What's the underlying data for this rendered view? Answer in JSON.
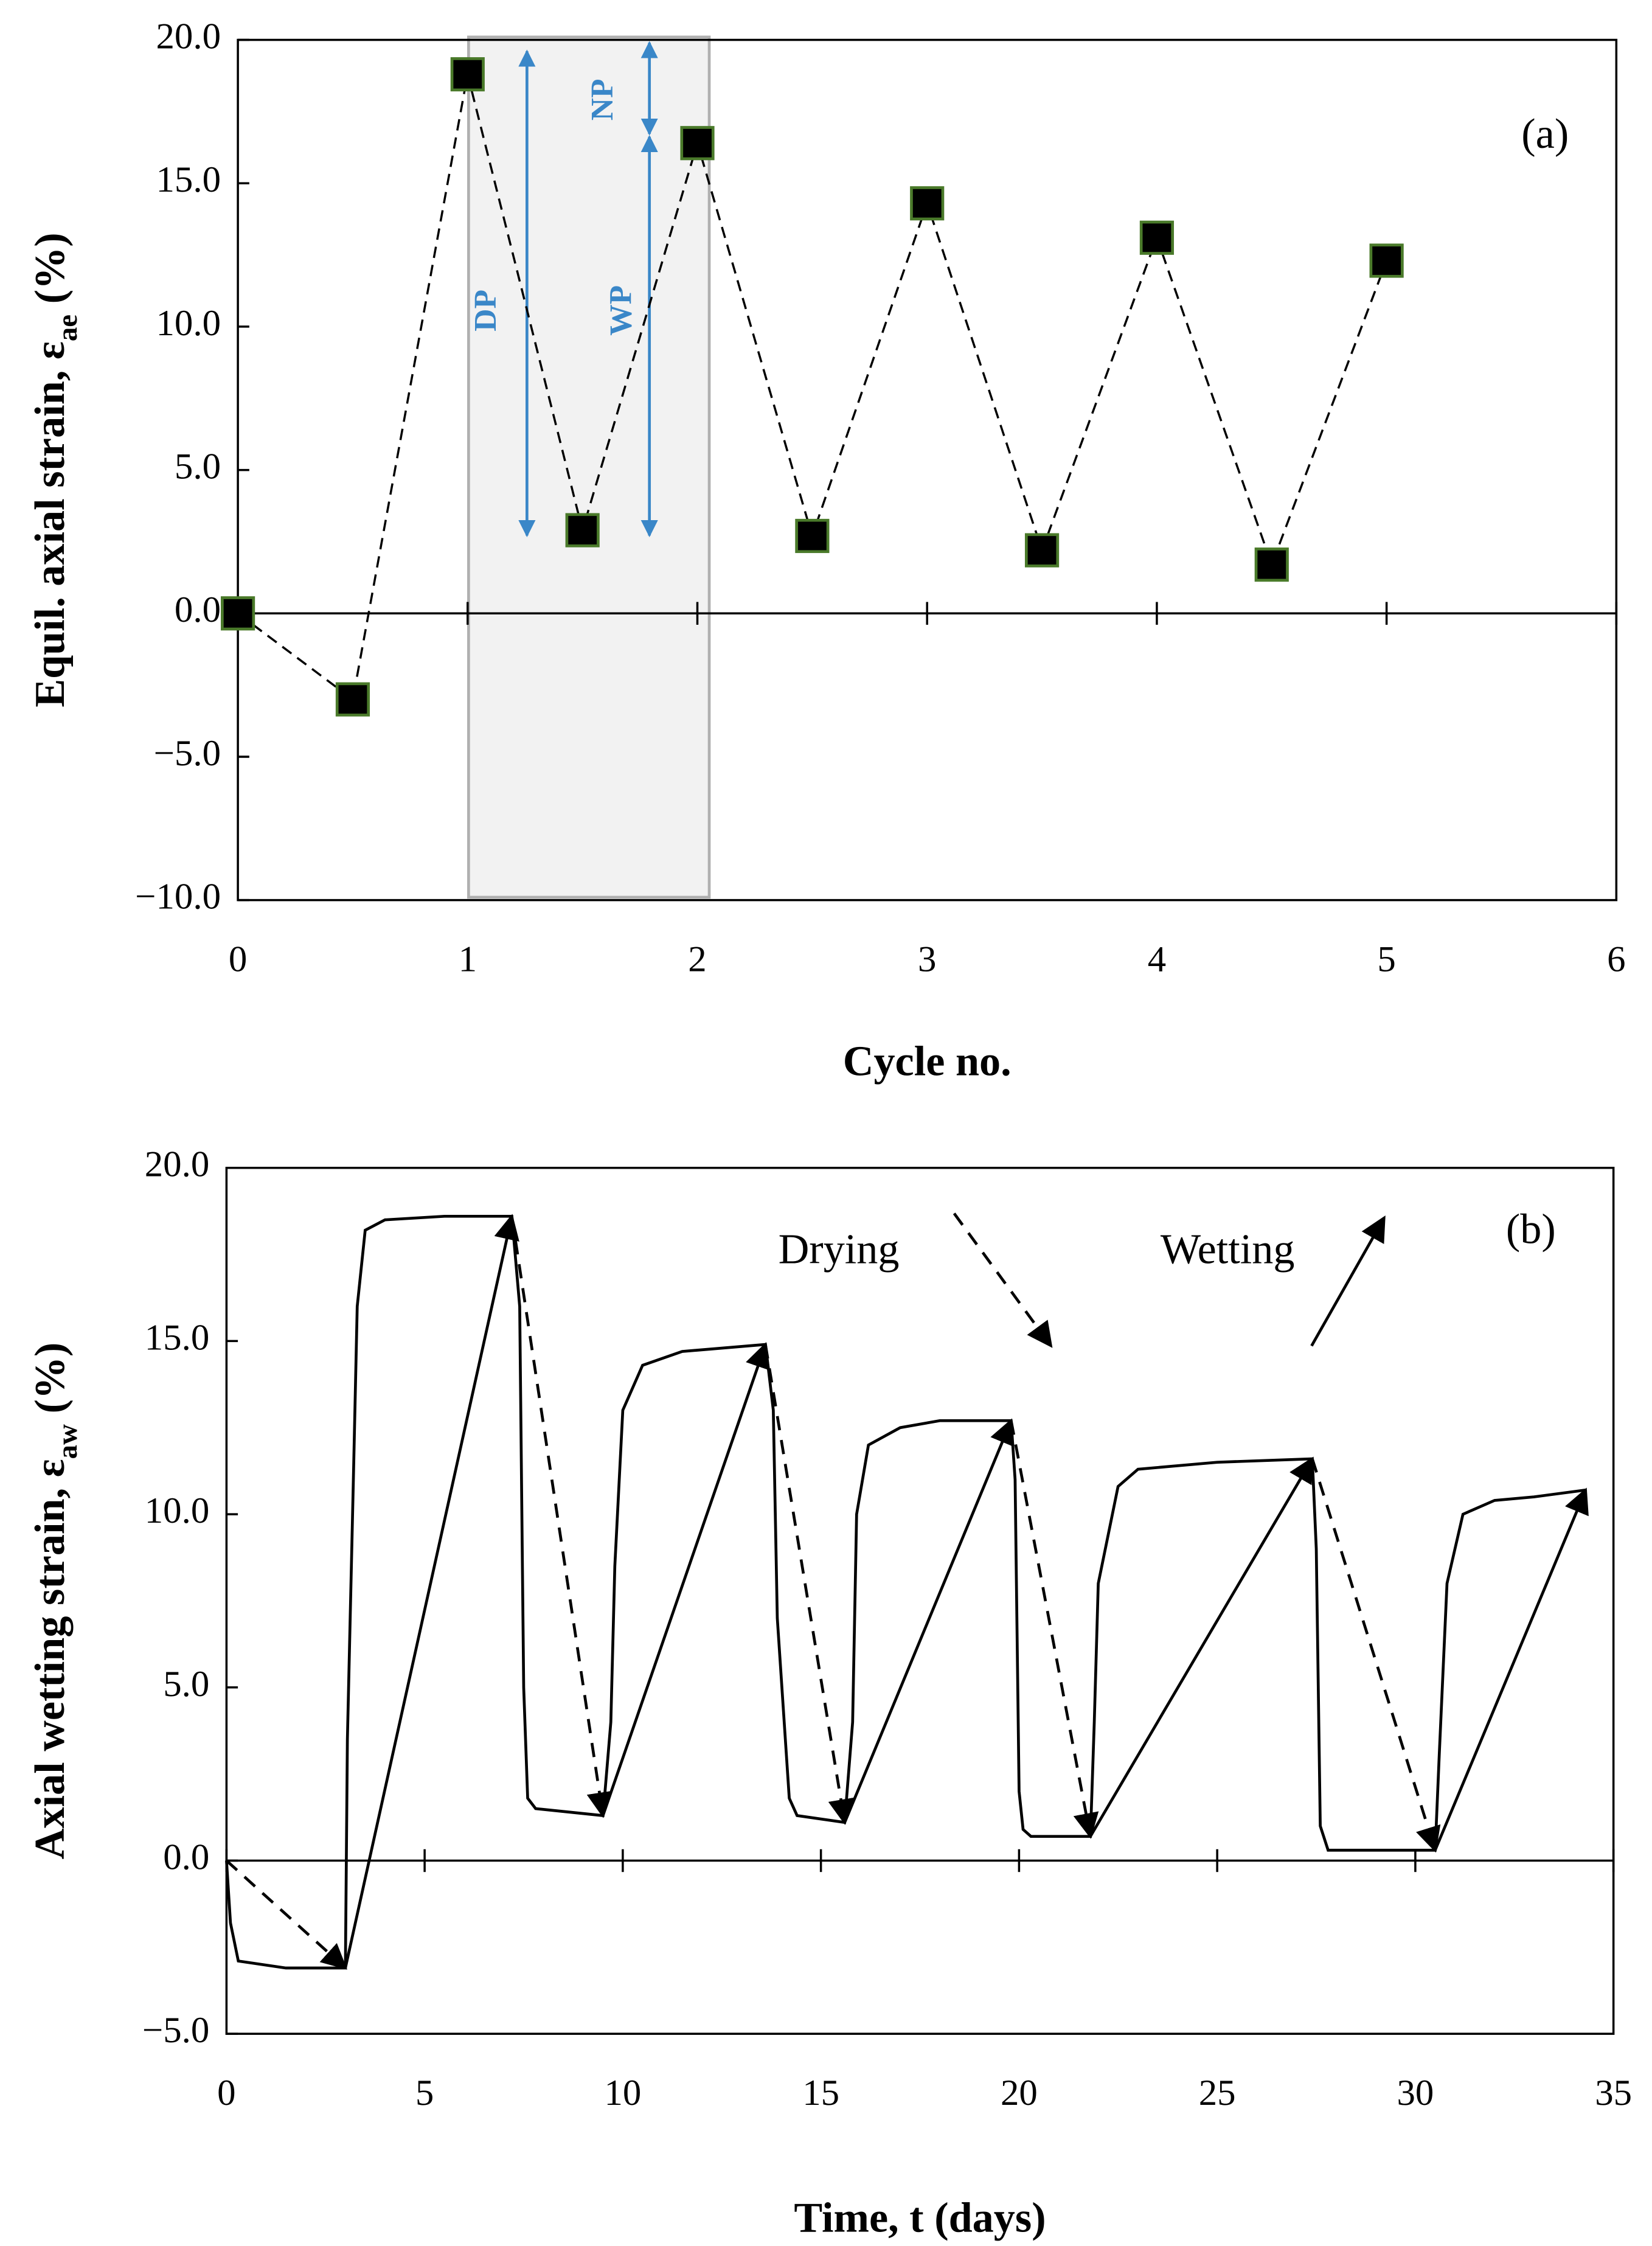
{
  "chart_data": [
    {
      "type": "line",
      "annotation": "(a)",
      "x": [
        0,
        0.5,
        1,
        1.5,
        2,
        2.5,
        3,
        3.5,
        4,
        4.5,
        5
      ],
      "values": [
        0,
        -3.0,
        18.8,
        2.9,
        16.4,
        2.7,
        14.3,
        2.2,
        13.1,
        1.7,
        12.3
      ],
      "color": "#000000",
      "marker_edge": "#4a7a2a",
      "xlim": [
        0,
        6
      ],
      "xticks": [
        0,
        1,
        2,
        3,
        4,
        5,
        6
      ],
      "ylim": [
        -10,
        20
      ],
      "yticks": [
        {
          "value": -10,
          "label": "−10.0"
        },
        {
          "value": -5,
          "label": "−5.0"
        },
        {
          "value": 0,
          "label": "0.0"
        },
        {
          "value": 5,
          "label": "5.0"
        },
        {
          "value": 10,
          "label": "10.0"
        },
        {
          "value": 15,
          "label": "15.0"
        },
        {
          "value": 20,
          "label": "20.0"
        }
      ],
      "xlabel": "Cycle no.",
      "ylabel": {
        "text": "Equil. axial strain, ε",
        "sub": "ae",
        "suffix": " (%)"
      },
      "phase_labels": [
        "DP",
        "NP",
        "WP"
      ],
      "phase_color": "#3a87c8"
    },
    {
      "type": "line",
      "annotation": "(b)",
      "x": [
        0,
        0.1,
        0.3,
        1.5,
        3.0,
        3.05,
        3.2,
        3.3,
        3.5,
        4,
        5.5,
        7.2,
        7.4,
        7.5,
        7.6,
        7.8,
        9.5,
        9.7,
        9.8,
        10,
        10.5,
        11.5,
        13.6,
        13.8,
        13.9,
        14.2,
        14.4,
        15.6,
        15.8,
        15.9,
        16.2,
        17,
        18,
        19.8,
        19.9,
        20,
        20.1,
        20.3,
        21.8,
        21.9,
        22,
        22.5,
        23,
        25,
        27.4,
        27.5,
        27.6,
        27.8,
        30.5,
        30.6,
        30.8,
        31.2,
        32,
        33,
        34.3
      ],
      "values": [
        0,
        -1.8,
        -2.9,
        -3.1,
        -3.1,
        3.5,
        11,
        16,
        18.2,
        18.5,
        18.6,
        18.6,
        16,
        5,
        1.8,
        1.5,
        1.3,
        4,
        8.5,
        13,
        14.3,
        14.7,
        14.9,
        13,
        7,
        1.8,
        1.3,
        1.1,
        4,
        10,
        12,
        12.5,
        12.7,
        12.7,
        11,
        2,
        0.9,
        0.7,
        0.7,
        4,
        8,
        10.8,
        11.3,
        11.5,
        11.6,
        9,
        1,
        0.3,
        0.3,
        3,
        8,
        10,
        10.4,
        10.5,
        10.7
      ],
      "color": "#000000",
      "extremes": {
        "x": [
          0,
          3.0,
          7.2,
          9.5,
          13.6,
          15.6,
          19.8,
          21.8,
          27.4,
          30.5,
          34.3
        ],
        "values": [
          0,
          -3.1,
          18.6,
          1.3,
          14.9,
          1.1,
          12.7,
          0.7,
          11.6,
          0.3,
          10.7
        ]
      },
      "legend": [
        "Drying",
        "Wetting"
      ],
      "xlim": [
        0,
        35
      ],
      "xticks": [
        0,
        5,
        10,
        15,
        20,
        25,
        30,
        35
      ],
      "ylim": [
        -5,
        20
      ],
      "yticks": [
        {
          "value": -5,
          "label": "−5.0"
        },
        {
          "value": 0,
          "label": "0.0"
        },
        {
          "value": 5,
          "label": "5.0"
        },
        {
          "value": 10,
          "label": "10.0"
        },
        {
          "value": 15,
          "label": "15.0"
        },
        {
          "value": 20,
          "label": "20.0"
        }
      ],
      "xlabel": "Time, t (days)",
      "ylabel": {
        "text": "Axial wetting strain, ε",
        "sub": "aw",
        "suffix": " (%)"
      }
    }
  ]
}
